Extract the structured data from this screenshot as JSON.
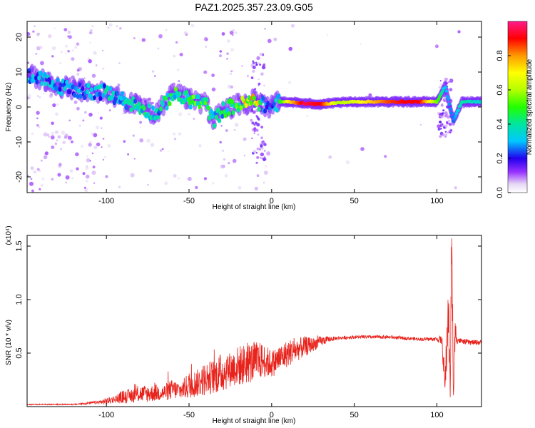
{
  "title": "PAZ1.2025.357.23.09.G05",
  "chart_data": [
    {
      "type": "heatmap",
      "xlabel": "Height of straight line (km)",
      "ylabel": "Frequency (Hz)",
      "xlim": [
        -148,
        127
      ],
      "ylim": [
        -24.5,
        24.5
      ],
      "x_ticks": [
        -100,
        -50,
        0,
        50,
        100
      ],
      "x_tick_labels": [
        "-100",
        "-50",
        "0",
        "50",
        "100"
      ],
      "y_ticks": [
        -20,
        -10,
        0,
        10,
        20
      ],
      "y_tick_labels": [
        "-20",
        "-10",
        "0",
        "10",
        "20"
      ],
      "colorbar": {
        "label": "Normalized spectral amplitude",
        "range": [
          0,
          1
        ],
        "ticks": [
          0.0,
          0.2,
          0.4,
          0.6,
          0.8
        ],
        "tick_labels": [
          "0.0",
          "0.2",
          "0.4",
          "0.6",
          "0.8"
        ]
      },
      "ridge_frequency": {
        "x": [
          -145,
          -130,
          -120,
          -110,
          -100,
          -90,
          -80,
          -70,
          -60,
          -50,
          -40,
          -35,
          -30,
          -25,
          -20,
          -15,
          -10,
          -5,
          0,
          5,
          10,
          20,
          30,
          40,
          50,
          60,
          70,
          80,
          90,
          100,
          105,
          110,
          115,
          125
        ],
        "y": [
          9,
          6,
          5,
          4.5,
          4,
          2,
          0,
          -2,
          3.5,
          2,
          1,
          -4,
          -1,
          0,
          0.5,
          1,
          2,
          0.5,
          0,
          1.5,
          1.5,
          1,
          0.8,
          1.2,
          1.5,
          1.5,
          1.5,
          1.5,
          1.5,
          1.5,
          6,
          -4,
          1.5,
          1.5
        ],
        "amplitude": [
          0.3,
          0.3,
          0.3,
          0.3,
          0.35,
          0.35,
          0.4,
          0.35,
          0.45,
          0.5,
          0.45,
          0.35,
          0.4,
          0.45,
          0.55,
          0.7,
          0.85,
          0.3,
          0.2,
          0.45,
          0.7,
          0.95,
          0.9,
          0.6,
          0.65,
          0.75,
          0.85,
          0.9,
          0.9,
          0.55,
          0.3,
          0.25,
          0.4,
          0.35
        ]
      }
    },
    {
      "type": "line",
      "xlabel": "Height of straight line (km)",
      "ylabel": "SNR (10 * v/v)",
      "y_multiplier": "(x10⁴)",
      "xlim": [
        -148,
        127
      ],
      "ylim": [
        0,
        1.6
      ],
      "x_ticks": [
        -100,
        -50,
        0,
        50,
        100
      ],
      "x_tick_labels": [
        "-100",
        "-50",
        "0",
        "50",
        "100"
      ],
      "y_ticks": [
        0.5,
        1.0,
        1.5
      ],
      "y_tick_labels": [
        "0.5",
        "1.0",
        "1.5"
      ],
      "color": "#e8231c",
      "series": [
        {
          "x": [
            -148,
            -120,
            -105,
            -100,
            -95,
            -90,
            -85,
            -80,
            -75,
            -70,
            -65,
            -60,
            -55,
            -50,
            -45,
            -40,
            -35,
            -30,
            -25,
            -20,
            -15,
            -10,
            -5,
            0,
            5,
            10,
            15,
            20,
            25,
            30,
            35,
            40,
            50,
            60,
            70,
            80,
            90,
            100,
            103,
            105,
            107,
            108,
            109,
            110,
            111,
            113,
            115,
            120,
            127
          ],
          "y": [
            0.02,
            0.02,
            0.04,
            0.05,
            0.07,
            0.09,
            0.1,
            0.12,
            0.12,
            0.13,
            0.13,
            0.16,
            0.15,
            0.2,
            0.22,
            0.26,
            0.28,
            0.32,
            0.35,
            0.38,
            0.4,
            0.42,
            0.43,
            0.4,
            0.45,
            0.5,
            0.53,
            0.56,
            0.58,
            0.61,
            0.63,
            0.64,
            0.65,
            0.65,
            0.65,
            0.64,
            0.63,
            0.63,
            0.62,
            0.2,
            0.95,
            0.15,
            1.55,
            0.1,
            0.7,
            0.62,
            0.61,
            0.6,
            0.6
          ],
          "noise": [
            0.003,
            0.003,
            0.01,
            0.02,
            0.02,
            0.04,
            0.04,
            0.05,
            0.05,
            0.05,
            0.05,
            0.06,
            0.05,
            0.08,
            0.08,
            0.1,
            0.1,
            0.12,
            0.1,
            0.12,
            0.12,
            0.12,
            0.1,
            0.08,
            0.08,
            0.08,
            0.07,
            0.06,
            0.04,
            0.03,
            0.015,
            0.01,
            0.01,
            0.01,
            0.01,
            0.01,
            0.01,
            0.012,
            0.03,
            0.1,
            0.2,
            0.1,
            0.2,
            0.1,
            0.08,
            0.02,
            0.015,
            0.015,
            0.015
          ]
        }
      ]
    }
  ]
}
